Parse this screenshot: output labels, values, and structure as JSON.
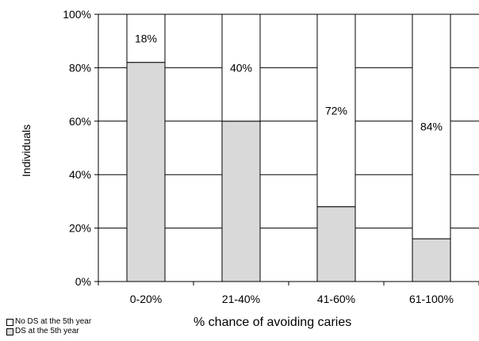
{
  "chart_data": {
    "type": "bar",
    "stacked": true,
    "categories": [
      "0-20%",
      "21-40%",
      "41-60%",
      "61-100%"
    ],
    "series": [
      {
        "name": "DS at the 5th year",
        "values": [
          82,
          60,
          28,
          16
        ],
        "color": "#d9d9d9"
      },
      {
        "name": "No DS at the 5th year",
        "values": [
          18,
          40,
          72,
          84
        ],
        "color": "#ffffff"
      }
    ],
    "data_labels": [
      "18%",
      "40%",
      "72%",
      "84%"
    ],
    "xlabel": "% chance of avoiding caries",
    "ylabel": "Individuals",
    "ylim": [
      0,
      100
    ],
    "yticks": [
      "0%",
      "20%",
      "40%",
      "60%",
      "80%",
      "100%"
    ],
    "grid": true,
    "legend": {
      "placement": "bottom-left",
      "items": [
        {
          "label": "No DS at the 5th year",
          "color": "#ffffff"
        },
        {
          "label": "DS at the 5th year",
          "color": "#d9d9d9"
        }
      ]
    }
  }
}
